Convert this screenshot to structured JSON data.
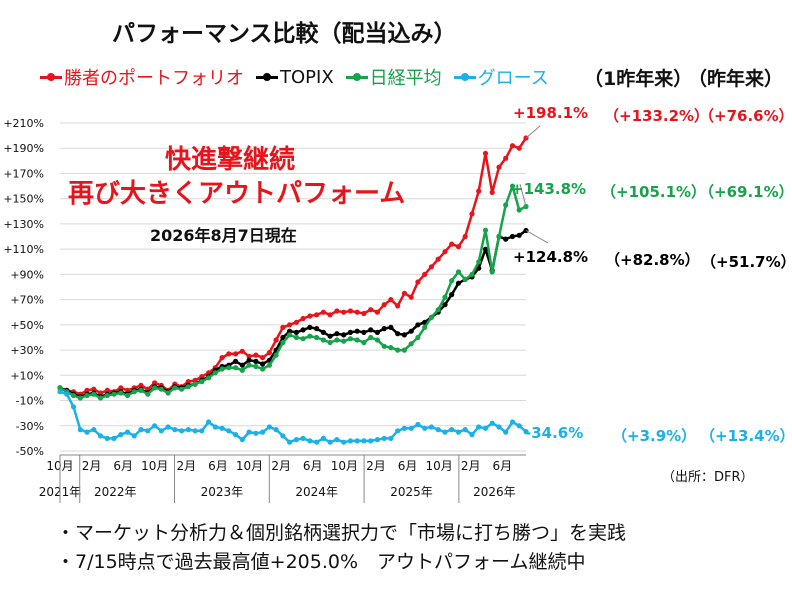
{
  "page": {
    "title": "パフォーマンス比較（配当込み）",
    "col_header_1": "（1昨年来）",
    "col_header_2": "（昨年来）",
    "annotation_line1": "快進撃継続",
    "annotation_line2": "再び大きくアウトパフォーム",
    "as_of": "2026年8月7日現在",
    "source": "（出所：DFR）",
    "bullet1": "・マーケット分析力＆個別銘柄選択力で「市場に打ち勝つ」を実践",
    "bullet2": "・7/15時点で過去最高値+205.0%　アウトパフォーム継続中"
  },
  "colors": {
    "red": "#e8141b",
    "black": "#000000",
    "green": "#16a34a",
    "blue": "#1ab0e8",
    "grid": "#d9d9d9"
  },
  "chart_data": {
    "type": "line",
    "ylim": [
      -50,
      210
    ],
    "yticks": [
      "+210%",
      "+190%",
      "+170%",
      "+150%",
      "+130%",
      "+110%",
      "+90%",
      "+70%",
      "+50%",
      "+30%",
      "+10%",
      "-10%",
      "-30%",
      "-50%"
    ],
    "xtick_labels": [
      "10月",
      "2月",
      "6月",
      "10月",
      "2月",
      "6月",
      "10月",
      "2月",
      "6月",
      "10月",
      "2月",
      "6月",
      "10月",
      "2月",
      "6月"
    ],
    "year_labels": [
      "2021年",
      "2022年",
      "2023年",
      "2024年",
      "2025年",
      "2026年"
    ],
    "series": [
      {
        "name": "勝者のポートフォリオ",
        "color": "red",
        "end_label": "+198.1%",
        "col1": "（+133.2%）",
        "col2": "（+76.6%）",
        "values": [
          0,
          -2,
          -3,
          -5,
          -2,
          -1,
          -4,
          -2,
          -3,
          0,
          -2,
          0,
          2,
          -1,
          4,
          2,
          -2,
          3,
          1,
          5,
          6,
          9,
          12,
          16,
          24,
          27,
          27,
          29,
          25,
          26,
          24,
          28,
          38,
          48,
          50,
          52,
          55,
          57,
          58,
          60,
          58,
          61,
          60,
          61,
          60,
          59,
          62,
          60,
          66,
          70,
          65,
          75,
          72,
          84,
          90,
          96,
          102,
          108,
          114,
          112,
          120,
          138,
          156,
          186,
          155,
          175,
          182,
          192,
          190,
          198.1
        ]
      },
      {
        "name": "TOPIX",
        "color": "black",
        "end_label": "+124.8%",
        "col1": "（+82.8%）",
        "col2": "（+51.7%）",
        "values": [
          0,
          -2,
          -5,
          -7,
          -5,
          -4,
          -7,
          -5,
          -4,
          -3,
          -5,
          -2,
          -1,
          -4,
          1,
          0,
          -3,
          1,
          0,
          2,
          3,
          6,
          9,
          14,
          17,
          18,
          21,
          18,
          22,
          21,
          19,
          22,
          30,
          40,
          45,
          44,
          46,
          48,
          47,
          44,
          41,
          43,
          42,
          44,
          45,
          44,
          46,
          44,
          47,
          48,
          43,
          42,
          45,
          50,
          52,
          56,
          60,
          66,
          74,
          83,
          86,
          88,
          95,
          110,
          93,
          120,
          118,
          120,
          121,
          124.8
        ]
      },
      {
        "name": "日経平均",
        "color": "green",
        "end_label": "+143.8%",
        "col1": "（+105.1%）",
        "col2": "（+69.1%）",
        "values": [
          0,
          -3,
          -6,
          -8,
          -6,
          -5,
          -8,
          -6,
          -5,
          -4,
          -6,
          -3,
          -2,
          -5,
          0,
          -1,
          -4,
          0,
          -1,
          1,
          3,
          5,
          8,
          12,
          15,
          16,
          16,
          14,
          18,
          17,
          15,
          18,
          26,
          36,
          42,
          40,
          39,
          41,
          40,
          38,
          36,
          38,
          37,
          39,
          38,
          36,
          40,
          38,
          33,
          32,
          30,
          30,
          35,
          40,
          48,
          56,
          62,
          72,
          85,
          92,
          86,
          90,
          100,
          125,
          92,
          120,
          145,
          160,
          141,
          143.8
        ]
      },
      {
        "name": "グロース",
        "color": "blue",
        "end_label": "-34.6%",
        "col1": "（+3.9%）",
        "col2": "（+13.4%）",
        "values": [
          -3,
          -5,
          -15,
          -33,
          -35,
          -33,
          -38,
          -40,
          -40,
          -37,
          -35,
          -38,
          -33,
          -34,
          -30,
          -34,
          -31,
          -33,
          -34,
          -33,
          -34,
          -34,
          -27,
          -31,
          -32,
          -34,
          -37,
          -41,
          -35,
          -36,
          -35,
          -31,
          -33,
          -38,
          -43,
          -41,
          -40,
          -42,
          -43,
          -40,
          -43,
          -41,
          -43,
          -42,
          -42,
          -42,
          -42,
          -41,
          -40,
          -40,
          -34,
          -32,
          -32,
          -29,
          -32,
          -31,
          -33,
          -35,
          -33,
          -35,
          -33,
          -37,
          -31,
          -32,
          -28,
          -31,
          -35,
          -27,
          -30,
          -34.6
        ]
      }
    ]
  }
}
